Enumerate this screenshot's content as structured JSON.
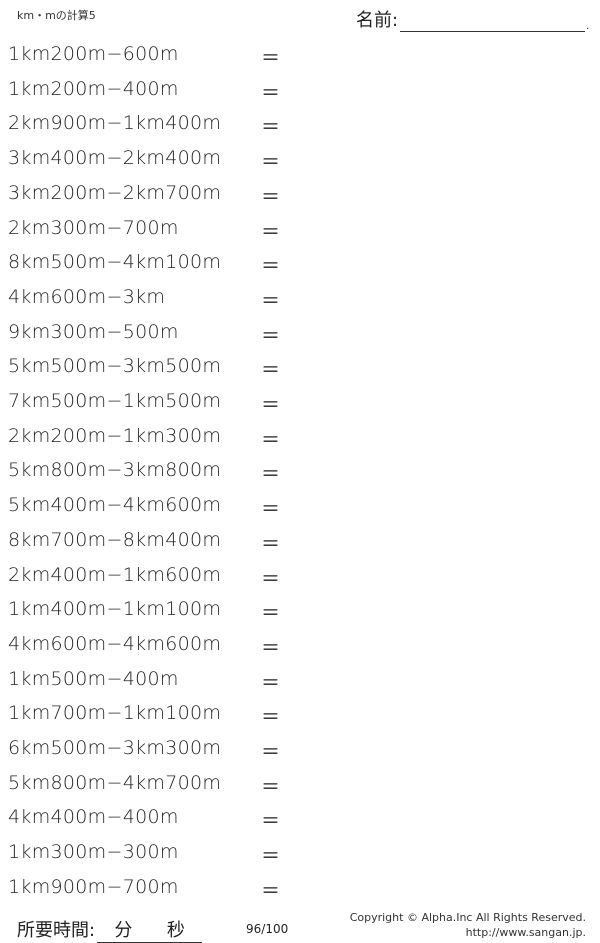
{
  "header": {
    "title": "km・mの計算5",
    "name_label": "名前:",
    "name_dot": "."
  },
  "problems": [
    "1km200m−600m",
    "1km200m−400m",
    "2km900m−1km400m",
    "3km400m−2km400m",
    "3km200m−2km700m",
    "2km300m−700m",
    "8km500m−4km100m",
    "4km600m−3km",
    "9km300m−500m",
    "5km500m−3km500m",
    "7km500m−1km500m",
    "2km200m−1km300m",
    "5km800m−3km800m",
    "5km400m−4km600m",
    "8km700m−8km400m",
    "2km400m−1km600m",
    "1km400m−1km100m",
    "4km600m−4km600m",
    "1km500m−400m",
    "1km700m−1km100m",
    "6km500m−3km300m",
    "5km800m−4km700m",
    "4km400m−400m",
    "1km300m−300m",
    "1km900m−700m"
  ],
  "equals": "＝",
  "footer": {
    "time_label": "所要時間:",
    "minutes": "分",
    "seconds": "秒",
    "page": "96/100",
    "copyright": "Copyright © Alpha.Inc All Rights Reserved.",
    "url": "http://www.sangan.jp."
  }
}
